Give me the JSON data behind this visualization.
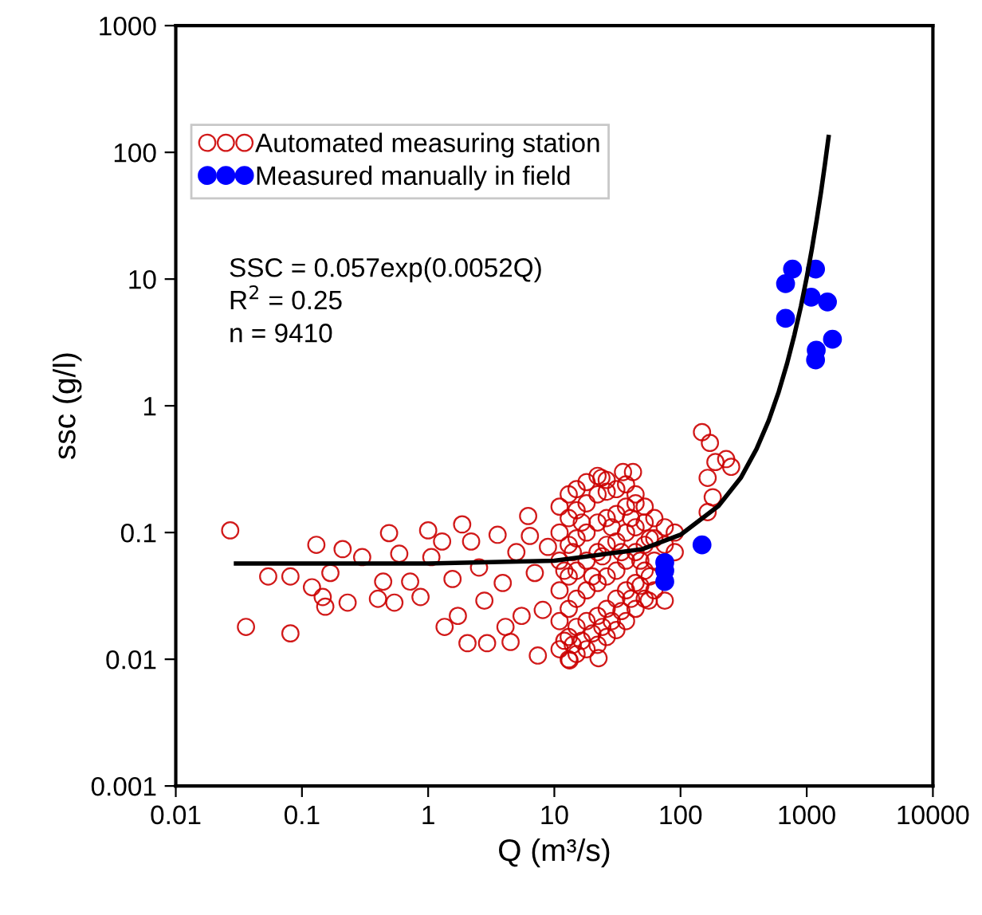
{
  "chart_data": {
    "type": "scatter",
    "xlabel": "Q (m³/s)",
    "ylabel": "ssc (g/l)",
    "log": "xy",
    "xlim": [
      0.01,
      10000
    ],
    "ylim": [
      0.001,
      1000
    ],
    "xticks": [
      0.01,
      0.1,
      1,
      10,
      100,
      1000,
      10000
    ],
    "yticks": [
      0.001,
      0.01,
      0.1,
      1,
      10,
      100,
      1000
    ],
    "grid": false,
    "legend": "top left",
    "marker": "circle",
    "annotations": [
      "SSC = 0.057exp(0.0052Q)",
      "R$^{2}$ = 0.25",
      "n = 9410"
    ],
    "series": [
      {
        "name": "Automated measuring station",
        "color": "#cc0000",
        "x": [
          0.027,
          0.036,
          0.081,
          0.054,
          0.081,
          0.13,
          0.12,
          0.146,
          0.153,
          0.168,
          0.21,
          0.23,
          0.3,
          0.44,
          0.4,
          0.49,
          0.54,
          0.59,
          0.72,
          0.87,
          1.0,
          1.06,
          1.35,
          1.29,
          1.56,
          1.86,
          1.72,
          2.05,
          2.19,
          2.53,
          2.93,
          2.79,
          3.55,
          3.9,
          4.5,
          4.1,
          5.0,
          5.5,
          6.2,
          6.4,
          7.4,
          7.0,
          8.1,
          8.9,
          23.6,
          35,
          42,
          148,
          171,
          189,
          230,
          252,
          164,
          180,
          164,
          75,
          56,
          22.4,
          13.2,
          11,
          11,
          11,
          11,
          11,
          11,
          13,
          13,
          13,
          13,
          13,
          13,
          13,
          15,
          15,
          15,
          15,
          15,
          15,
          15,
          18,
          18,
          18,
          18,
          18,
          18,
          18,
          22,
          22,
          22,
          22,
          22,
          22,
          22,
          26,
          26,
          26,
          26,
          26,
          26,
          26,
          31,
          31,
          31,
          31,
          31,
          31,
          37,
          37,
          37,
          37,
          37,
          37,
          44,
          44,
          44,
          44,
          44,
          44,
          52,
          52,
          52,
          52,
          52,
          62,
          62,
          62,
          62,
          75,
          75,
          90,
          90,
          12,
          14,
          16.5,
          20,
          24,
          28.5,
          34,
          40.5,
          48,
          57,
          12,
          14,
          16.5,
          20,
          24,
          28.5,
          34,
          40.5,
          48,
          57
        ],
        "values": [
          0.104,
          0.018,
          0.016,
          0.045,
          0.045,
          0.08,
          0.037,
          0.031,
          0.026,
          0.048,
          0.074,
          0.028,
          0.064,
          0.041,
          0.03,
          0.099,
          0.028,
          0.068,
          0.041,
          0.031,
          0.104,
          0.064,
          0.018,
          0.085,
          0.043,
          0.116,
          0.022,
          0.0134,
          0.085,
          0.053,
          0.0134,
          0.029,
          0.096,
          0.04,
          0.0137,
          0.018,
          0.07,
          0.022,
          0.135,
          0.094,
          0.0107,
          0.048,
          0.0245,
          0.077,
          0.27,
          0.3,
          0.3,
          0.62,
          0.51,
          0.36,
          0.38,
          0.33,
          0.27,
          0.19,
          0.145,
          0.029,
          0.029,
          0.0102,
          0.0098,
          0.012,
          0.02,
          0.035,
          0.06,
          0.1,
          0.16,
          0.01,
          0.015,
          0.025,
          0.045,
          0.08,
          0.13,
          0.2,
          0.011,
          0.018,
          0.03,
          0.05,
          0.09,
          0.15,
          0.22,
          0.012,
          0.02,
          0.035,
          0.06,
          0.1,
          0.17,
          0.25,
          0.013,
          0.022,
          0.04,
          0.07,
          0.12,
          0.2,
          0.28,
          0.015,
          0.025,
          0.045,
          0.08,
          0.13,
          0.21,
          0.26,
          0.017,
          0.03,
          0.05,
          0.085,
          0.14,
          0.22,
          0.02,
          0.035,
          0.06,
          0.1,
          0.16,
          0.24,
          0.025,
          0.04,
          0.07,
          0.11,
          0.17,
          0.2,
          0.03,
          0.05,
          0.08,
          0.12,
          0.16,
          0.035,
          0.06,
          0.09,
          0.13,
          0.08,
          0.11,
          0.07,
          0.1,
          0.014,
          0.013,
          0.014,
          0.016,
          0.018,
          0.02,
          0.024,
          0.03,
          0.038,
          0.045,
          0.05,
          0.07,
          0.12,
          0.045,
          0.065,
          0.11,
          0.07,
          0.13,
          0.06,
          0.09
        ]
      },
      {
        "name": "Measured manually in field",
        "color": "#0000ff",
        "x": [
          148,
          75,
          75,
          75,
          772,
          680,
          1175,
          1085,
          1460,
          680,
          1600,
          1190,
          1175
        ],
        "values": [
          0.08,
          0.058,
          0.05,
          0.041,
          12.0,
          9.2,
          12.0,
          7.2,
          6.6,
          4.9,
          3.35,
          2.75,
          2.3
        ]
      },
      {
        "type": "line",
        "color": "#000000",
        "marker": "none",
        "x": [
          0.03,
          1,
          10,
          50,
          100,
          200,
          300,
          400,
          500,
          600,
          700,
          800,
          900,
          1000,
          1100,
          1200,
          1300,
          1400,
          1490
        ],
        "values": [
          0.057,
          0.057,
          0.06,
          0.074,
          0.096,
          0.162,
          0.27,
          0.456,
          0.766,
          1.29,
          2.17,
          3.65,
          6.1,
          10.3,
          17.4,
          29.3,
          49,
          83,
          132
        ]
      }
    ]
  }
}
